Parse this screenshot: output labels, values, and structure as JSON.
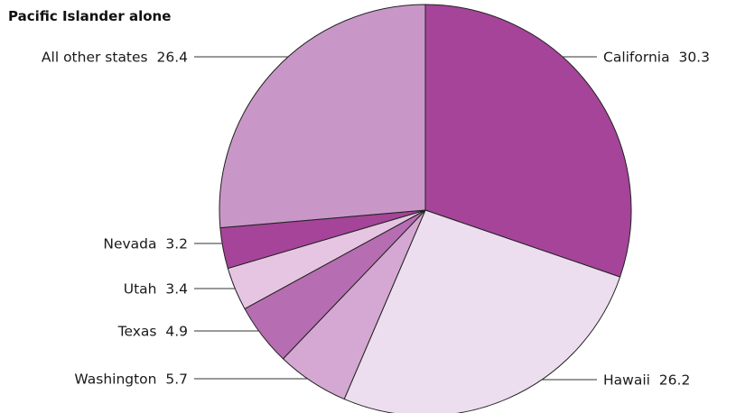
{
  "chart_data": {
    "type": "pie",
    "title": "Pacific Islander alone",
    "slices": [
      {
        "label": "California",
        "value": 30.3,
        "display": "30.3",
        "color": "#a54499",
        "side": "right"
      },
      {
        "label": "Hawaii",
        "value": 26.2,
        "display": "26.2",
        "color": "#ecdeee",
        "side": "right"
      },
      {
        "label": "Washington",
        "value": 5.7,
        "display": "5.7",
        "color": "#d4a8d2",
        "side": "left"
      },
      {
        "label": "Texas",
        "value": 4.9,
        "display": "4.9",
        "color": "#b76db1",
        "side": "left"
      },
      {
        "label": "Utah",
        "value": 3.4,
        "display": "3.4",
        "color": "#e6c5e2",
        "side": "left"
      },
      {
        "label": "Nevada",
        "value": 3.2,
        "display": "3.2",
        "color": "#a54499",
        "side": "left"
      },
      {
        "label": "All other states",
        "value": 26.4,
        "display": "26.4",
        "color": "#c897c7",
        "side": "left"
      }
    ]
  }
}
